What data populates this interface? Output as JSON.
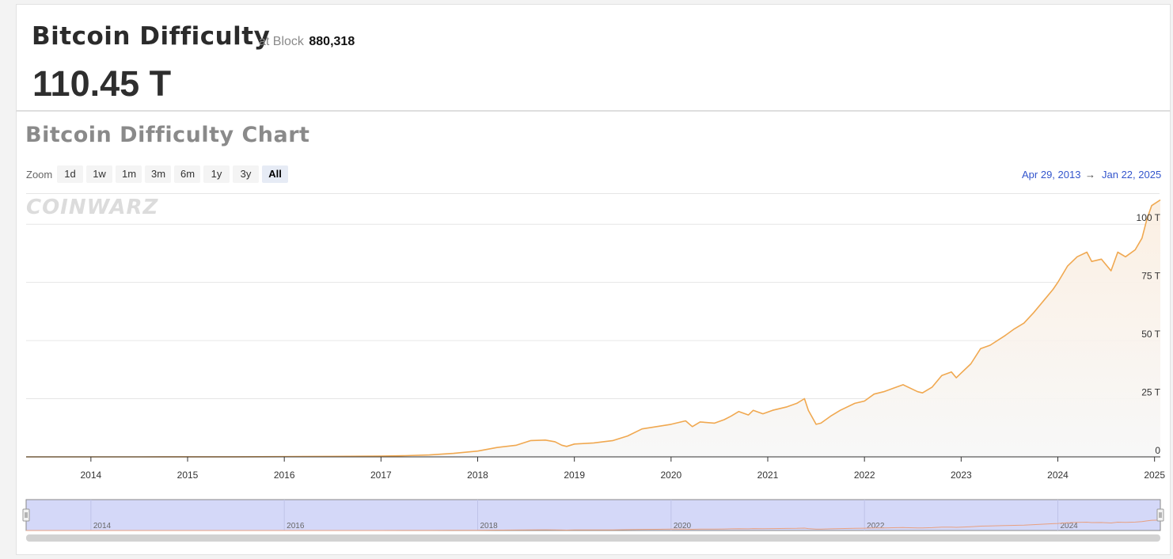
{
  "header": {
    "title": "Bitcoin Difficulty",
    "at_block_label": "at Block",
    "block_number": "880,318",
    "current_value": "110.45 T"
  },
  "chart_section": {
    "title": "Bitcoin Difficulty Chart",
    "logo_text": "COINWARZ",
    "zoom_label": "Zoom",
    "zoom_buttons": [
      "1d",
      "1w",
      "1m",
      "3m",
      "6m",
      "1y",
      "3y",
      "All"
    ],
    "zoom_active": "All",
    "range_from": "Apr 29, 2013",
    "range_arrow": "→",
    "range_to": "Jan 22, 2025"
  },
  "colors": {
    "line": "#f0a850",
    "navigator_bg": "#d4d8f8",
    "navigator_line": "#e8a080",
    "range_link": "#3355cc"
  },
  "chart_data": {
    "type": "area",
    "title": "Bitcoin Difficulty Chart",
    "y_unit": "T",
    "ylim": [
      0,
      113
    ],
    "y_ticks": [
      0,
      25,
      50,
      75,
      100
    ],
    "y_tick_labels": [
      "0",
      "25 T",
      "50 T",
      "75 T",
      "100 T"
    ],
    "x_ticks": [
      "2014",
      "2015",
      "2016",
      "2017",
      "2018",
      "2019",
      "2020",
      "2021",
      "2022",
      "2023",
      "2024",
      "2025"
    ],
    "navigator_ticks": [
      "2014",
      "2016",
      "2018",
      "2020",
      "2022",
      "2024"
    ],
    "xlim": [
      2013.33,
      2025.06
    ],
    "grid": true,
    "series": [
      {
        "x": [
          2013.33,
          2013.5,
          2013.75,
          2014.0,
          2014.25,
          2014.5,
          2014.75,
          2015.0,
          2015.5,
          2016.0,
          2016.5,
          2017.0,
          2017.25,
          2017.5,
          2017.75,
          2018.0,
          2018.2,
          2018.4,
          2018.55,
          2018.7,
          2018.8,
          2018.87,
          2018.92,
          2019.0,
          2019.2,
          2019.4,
          2019.55,
          2019.7,
          2019.85,
          2020.0,
          2020.15,
          2020.22,
          2020.3,
          2020.45,
          2020.55,
          2020.62,
          2020.7,
          2020.8,
          2020.85,
          2020.95,
          2021.05,
          2021.2,
          2021.3,
          2021.38,
          2021.42,
          2021.5,
          2021.55,
          2021.65,
          2021.75,
          2021.9,
          2022.0,
          2022.1,
          2022.2,
          2022.3,
          2022.4,
          2022.55,
          2022.6,
          2022.7,
          2022.8,
          2022.9,
          2022.95,
          2023.0,
          2023.1,
          2023.2,
          2023.3,
          2023.45,
          2023.55,
          2023.65,
          2023.75,
          2023.85,
          2023.95,
          2024.0,
          2024.1,
          2024.2,
          2024.3,
          2024.35,
          2024.45,
          2024.55,
          2024.62,
          2024.7,
          2024.8,
          2024.87,
          2024.92,
          2024.97,
          2025.06
        ],
        "y": [
          1e-05,
          3e-05,
          0.0003,
          0.002,
          0.006,
          0.015,
          0.03,
          0.04,
          0.05,
          0.1,
          0.2,
          0.3,
          0.5,
          0.8,
          1.5,
          2.5,
          4.0,
          5.0,
          7.0,
          7.2,
          6.5,
          5.0,
          4.5,
          5.5,
          6.0,
          7.0,
          9.0,
          12.0,
          13.0,
          14.0,
          15.5,
          13.0,
          15.0,
          14.5,
          16.0,
          17.5,
          19.5,
          18.0,
          20.0,
          18.5,
          20.0,
          21.5,
          23.0,
          25.0,
          20.0,
          14.0,
          14.5,
          17.5,
          20.0,
          23.0,
          24.0,
          27.0,
          28.0,
          29.5,
          31.0,
          28.0,
          27.5,
          30.0,
          35.0,
          36.5,
          34.0,
          36.0,
          40.0,
          46.5,
          48.0,
          52.0,
          55.0,
          57.5,
          62.0,
          67.0,
          72.0,
          75.0,
          82.0,
          86.0,
          88.0,
          84.0,
          85.0,
          80.0,
          88.0,
          86.0,
          89.0,
          94.0,
          102.0,
          108.0,
          110.45
        ]
      }
    ]
  }
}
